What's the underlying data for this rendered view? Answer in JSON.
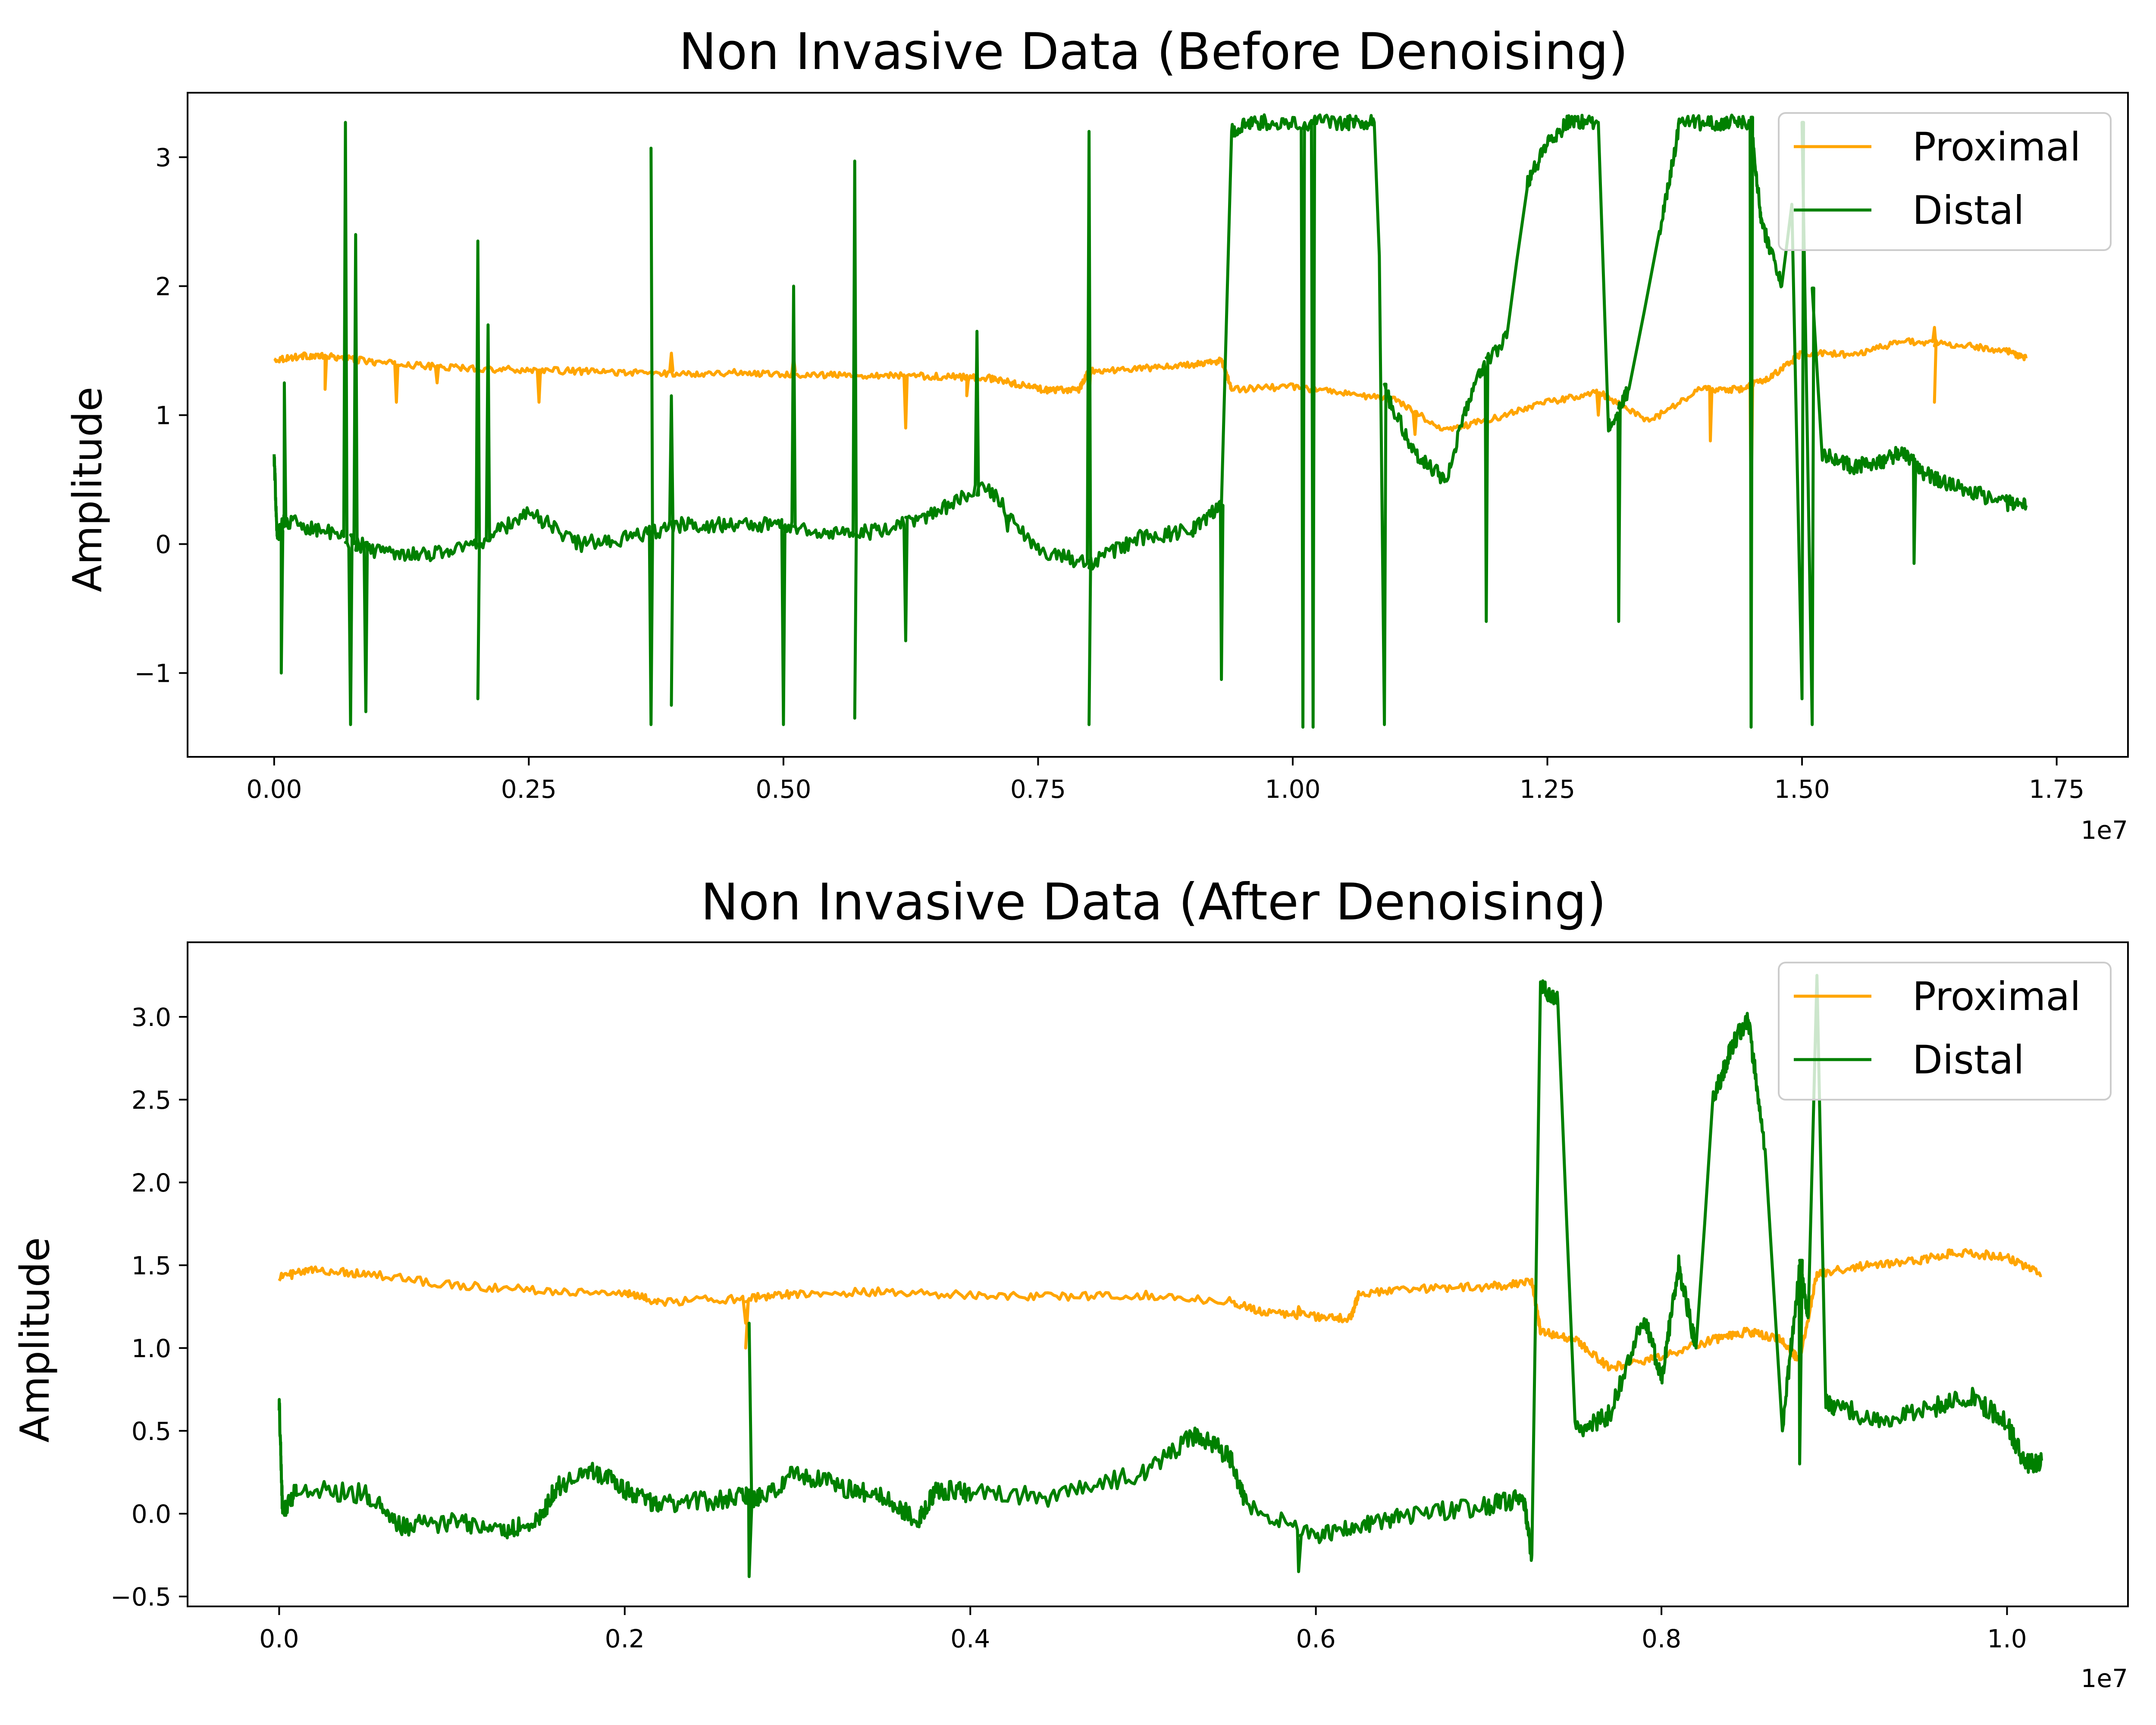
{
  "colors": {
    "proximal": "#ffa500",
    "distal": "#008000",
    "axes": "#000000",
    "background": "#ffffff"
  },
  "chart_data": [
    {
      "type": "line",
      "title": "Non Invasive Data (Before Denoising)",
      "xlabel": "",
      "ylabel": "Amplitude",
      "x_offset_label": "1e7",
      "xlim": [
        -0.085,
        1.82
      ],
      "ylim": [
        -1.65,
        3.5
      ],
      "x_ticks": [
        0.0,
        0.25,
        0.5,
        0.75,
        1.0,
        1.25,
        1.5,
        1.75
      ],
      "x_tick_labels": [
        "0.00",
        "0.25",
        "0.50",
        "0.75",
        "1.00",
        "1.25",
        "1.50",
        "1.75"
      ],
      "y_ticks": [
        -1,
        0,
        1,
        2,
        3
      ],
      "y_tick_labels": [
        "−1",
        "0",
        "1",
        "2",
        "3"
      ],
      "grid": false,
      "legend": "top-right",
      "series": [
        {
          "name": "Proximal",
          "color": "#ffa500",
          "points": [
            [
              0.0,
              1.43
            ],
            [
              0.03,
              1.46
            ],
            [
              0.06,
              1.45
            ],
            [
              0.1,
              1.41
            ],
            [
              0.15,
              1.38
            ],
            [
              0.2,
              1.36
            ],
            [
              0.25,
              1.35
            ],
            [
              0.3,
              1.34
            ],
            [
              0.35,
              1.33
            ],
            [
              0.4,
              1.32
            ],
            [
              0.45,
              1.33
            ],
            [
              0.5,
              1.32
            ],
            [
              0.55,
              1.31
            ],
            [
              0.6,
              1.31
            ],
            [
              0.65,
              1.3
            ],
            [
              0.7,
              1.29
            ],
            [
              0.73,
              1.24
            ],
            [
              0.76,
              1.19
            ],
            [
              0.79,
              1.2
            ],
            [
              0.8,
              1.34
            ],
            [
              0.85,
              1.36
            ],
            [
              0.9,
              1.39
            ],
            [
              0.93,
              1.42
            ],
            [
              0.94,
              1.2
            ],
            [
              1.0,
              1.22
            ],
            [
              1.05,
              1.17
            ],
            [
              1.1,
              1.12
            ],
            [
              1.15,
              0.88
            ],
            [
              1.2,
              0.98
            ],
            [
              1.25,
              1.1
            ],
            [
              1.3,
              1.18
            ],
            [
              1.35,
              0.95
            ],
            [
              1.4,
              1.2
            ],
            [
              1.44,
              1.2
            ],
            [
              1.47,
              1.3
            ],
            [
              1.5,
              1.48
            ],
            [
              1.55,
              1.47
            ],
            [
              1.6,
              1.57
            ],
            [
              1.65,
              1.55
            ],
            [
              1.7,
              1.5
            ],
            [
              1.72,
              1.44
            ]
          ],
          "spikes": [
            [
              0.05,
              1.2
            ],
            [
              0.12,
              1.1
            ],
            [
              0.16,
              1.25
            ],
            [
              0.26,
              1.1
            ],
            [
              0.39,
              1.48
            ],
            [
              0.51,
              1.45
            ],
            [
              0.62,
              0.9
            ],
            [
              0.68,
              1.15
            ],
            [
              0.8,
              1.1
            ],
            [
              1.12,
              0.85
            ],
            [
              1.3,
              1.0
            ],
            [
              1.41,
              0.8
            ],
            [
              1.45,
              0.2
            ],
            [
              1.63,
              1.68
            ],
            [
              1.63,
              1.1
            ]
          ]
        },
        {
          "name": "Distal",
          "color": "#008000",
          "points": [
            [
              0.0,
              0.68
            ],
            [
              0.003,
              0.05
            ],
            [
              0.01,
              0.18
            ],
            [
              0.05,
              0.1
            ],
            [
              0.1,
              -0.05
            ],
            [
              0.15,
              -0.08
            ],
            [
              0.2,
              0.0
            ],
            [
              0.25,
              0.25
            ],
            [
              0.3,
              0.0
            ],
            [
              0.35,
              0.05
            ],
            [
              0.4,
              0.15
            ],
            [
              0.45,
              0.15
            ],
            [
              0.5,
              0.15
            ],
            [
              0.55,
              0.08
            ],
            [
              0.6,
              0.1
            ],
            [
              0.65,
              0.25
            ],
            [
              0.7,
              0.45
            ],
            [
              0.75,
              -0.05
            ],
            [
              0.8,
              -0.15
            ],
            [
              0.85,
              0.05
            ],
            [
              0.9,
              0.1
            ],
            [
              0.93,
              0.3
            ],
            [
              0.94,
              3.2
            ],
            [
              0.96,
              3.27
            ],
            [
              1.0,
              3.27
            ],
            [
              1.05,
              3.27
            ],
            [
              1.08,
              3.27
            ],
            [
              1.09,
              1.2
            ],
            [
              1.12,
              0.7
            ],
            [
              1.15,
              0.5
            ],
            [
              1.18,
              1.3
            ],
            [
              1.21,
              1.6
            ],
            [
              1.23,
              2.8
            ],
            [
              1.25,
              3.1
            ],
            [
              1.27,
              3.27
            ],
            [
              1.3,
              3.27
            ],
            [
              1.31,
              0.9
            ],
            [
              1.33,
              1.2
            ],
            [
              1.36,
              2.4
            ],
            [
              1.38,
              3.27
            ],
            [
              1.42,
              3.27
            ],
            [
              1.45,
              3.27
            ],
            [
              1.46,
              2.5
            ],
            [
              1.48,
              2.0
            ],
            [
              1.5,
              3.27
            ],
            [
              1.52,
              0.7
            ],
            [
              1.55,
              0.6
            ],
            [
              1.58,
              0.65
            ],
            [
              1.6,
              0.72
            ],
            [
              1.62,
              0.55
            ],
            [
              1.65,
              0.45
            ],
            [
              1.7,
              0.32
            ],
            [
              1.72,
              0.3
            ]
          ],
          "spikes": [
            [
              0.007,
              -1.0
            ],
            [
              0.01,
              1.25
            ],
            [
              0.07,
              3.27
            ],
            [
              0.075,
              -1.4
            ],
            [
              0.08,
              2.4
            ],
            [
              0.09,
              -1.3
            ],
            [
              0.2,
              2.35
            ],
            [
              0.2,
              -1.2
            ],
            [
              0.21,
              1.7
            ],
            [
              0.37,
              -1.4
            ],
            [
              0.37,
              3.07
            ],
            [
              0.39,
              1.15
            ],
            [
              0.39,
              -1.25
            ],
            [
              0.5,
              -1.4
            ],
            [
              0.51,
              2.0
            ],
            [
              0.57,
              2.97
            ],
            [
              0.57,
              -1.35
            ],
            [
              0.62,
              -0.75
            ],
            [
              0.69,
              1.65
            ],
            [
              0.72,
              0.1
            ],
            [
              0.8,
              3.2
            ],
            [
              0.8,
              -1.4
            ],
            [
              0.93,
              -1.05
            ],
            [
              1.01,
              -1.42
            ],
            [
              1.02,
              -1.42
            ],
            [
              1.09,
              -1.4
            ],
            [
              1.19,
              -0.6
            ],
            [
              1.32,
              -0.6
            ],
            [
              1.45,
              -1.42
            ],
            [
              1.5,
              -1.2
            ],
            [
              1.51,
              -1.4
            ],
            [
              1.61,
              -0.15
            ]
          ]
        }
      ]
    },
    {
      "type": "line",
      "title": "Non Invasive Data (After Denoising)",
      "xlabel": "",
      "ylabel": "Amplitude",
      "x_offset_label": "1e7",
      "xlim": [
        -0.053,
        1.07
      ],
      "ylim": [
        -0.56,
        3.45
      ],
      "x_ticks": [
        0.0,
        0.2,
        0.4,
        0.6,
        0.8,
        1.0
      ],
      "x_tick_labels": [
        "0.0",
        "0.2",
        "0.4",
        "0.6",
        "0.8",
        "1.0"
      ],
      "y_ticks": [
        -0.5,
        0.0,
        0.5,
        1.0,
        1.5,
        2.0,
        2.5,
        3.0
      ],
      "y_tick_labels": [
        "−0.5",
        "0.0",
        "0.5",
        "1.0",
        "1.5",
        "2.0",
        "2.5",
        "3.0"
      ],
      "grid": false,
      "legend": "top-right",
      "series": [
        {
          "name": "Proximal",
          "color": "#ffa500",
          "points": [
            [
              0.0,
              1.43
            ],
            [
              0.02,
              1.47
            ],
            [
              0.05,
              1.45
            ],
            [
              0.1,
              1.38
            ],
            [
              0.15,
              1.35
            ],
            [
              0.2,
              1.33
            ],
            [
              0.22,
              1.28
            ],
            [
              0.27,
              1.3
            ],
            [
              0.3,
              1.33
            ],
            [
              0.35,
              1.34
            ],
            [
              0.4,
              1.32
            ],
            [
              0.45,
              1.31
            ],
            [
              0.5,
              1.32
            ],
            [
              0.55,
              1.28
            ],
            [
              0.57,
              1.22
            ],
            [
              0.6,
              1.19
            ],
            [
              0.62,
              1.18
            ],
            [
              0.625,
              1.33
            ],
            [
              0.66,
              1.36
            ],
            [
              0.7,
              1.37
            ],
            [
              0.725,
              1.4
            ],
            [
              0.73,
              1.1
            ],
            [
              0.75,
              1.05
            ],
            [
              0.77,
              0.88
            ],
            [
              0.8,
              0.95
            ],
            [
              0.83,
              1.05
            ],
            [
              0.85,
              1.1
            ],
            [
              0.87,
              1.05
            ],
            [
              0.88,
              0.92
            ],
            [
              0.89,
              1.45
            ],
            [
              0.92,
              1.5
            ],
            [
              0.95,
              1.53
            ],
            [
              0.97,
              1.58
            ],
            [
              1.0,
              1.55
            ],
            [
              1.02,
              1.44
            ]
          ],
          "spikes": [
            [
              0.27,
              1.15
            ],
            [
              0.27,
              1.0
            ],
            [
              0.59,
              1.25
            ]
          ]
        },
        {
          "name": "Distal",
          "color": "#008000",
          "points": [
            [
              0.0,
              0.68
            ],
            [
              0.002,
              0.0
            ],
            [
              0.01,
              0.15
            ],
            [
              0.05,
              0.12
            ],
            [
              0.07,
              -0.08
            ],
            [
              0.1,
              -0.05
            ],
            [
              0.13,
              -0.1
            ],
            [
              0.15,
              -0.05
            ],
            [
              0.16,
              0.15
            ],
            [
              0.18,
              0.28
            ],
            [
              0.2,
              0.15
            ],
            [
              0.22,
              0.05
            ],
            [
              0.25,
              0.08
            ],
            [
              0.27,
              0.1
            ],
            [
              0.28,
              0.1
            ],
            [
              0.3,
              0.25
            ],
            [
              0.33,
              0.15
            ],
            [
              0.35,
              0.1
            ],
            [
              0.37,
              -0.05
            ],
            [
              0.38,
              0.15
            ],
            [
              0.4,
              0.12
            ],
            [
              0.45,
              0.1
            ],
            [
              0.5,
              0.25
            ],
            [
              0.53,
              0.48
            ],
            [
              0.55,
              0.35
            ],
            [
              0.56,
              0.05
            ],
            [
              0.6,
              -0.15
            ],
            [
              0.63,
              -0.05
            ],
            [
              0.66,
              0.0
            ],
            [
              0.7,
              0.05
            ],
            [
              0.72,
              0.1
            ],
            [
              0.725,
              -0.25
            ],
            [
              0.73,
              3.2
            ],
            [
              0.74,
              3.1
            ],
            [
              0.75,
              0.5
            ],
            [
              0.77,
              0.6
            ],
            [
              0.79,
              1.2
            ],
            [
              0.8,
              0.8
            ],
            [
              0.81,
              1.5
            ],
            [
              0.82,
              1.0
            ],
            [
              0.83,
              2.5
            ],
            [
              0.84,
              2.8
            ],
            [
              0.85,
              3.0
            ],
            [
              0.86,
              2.2
            ],
            [
              0.87,
              0.5
            ],
            [
              0.88,
              1.5
            ],
            [
              0.885,
              1.2
            ],
            [
              0.89,
              3.25
            ],
            [
              0.895,
              0.7
            ],
            [
              0.9,
              0.65
            ],
            [
              0.93,
              0.55
            ],
            [
              0.96,
              0.65
            ],
            [
              0.98,
              0.7
            ],
            [
              1.0,
              0.55
            ],
            [
              1.01,
              0.3
            ],
            [
              1.02,
              0.32
            ]
          ],
          "spikes": [
            [
              0.272,
              -0.38
            ],
            [
              0.272,
              1.15
            ],
            [
              0.59,
              -0.35
            ],
            [
              0.88,
              0.3
            ]
          ]
        }
      ]
    }
  ]
}
